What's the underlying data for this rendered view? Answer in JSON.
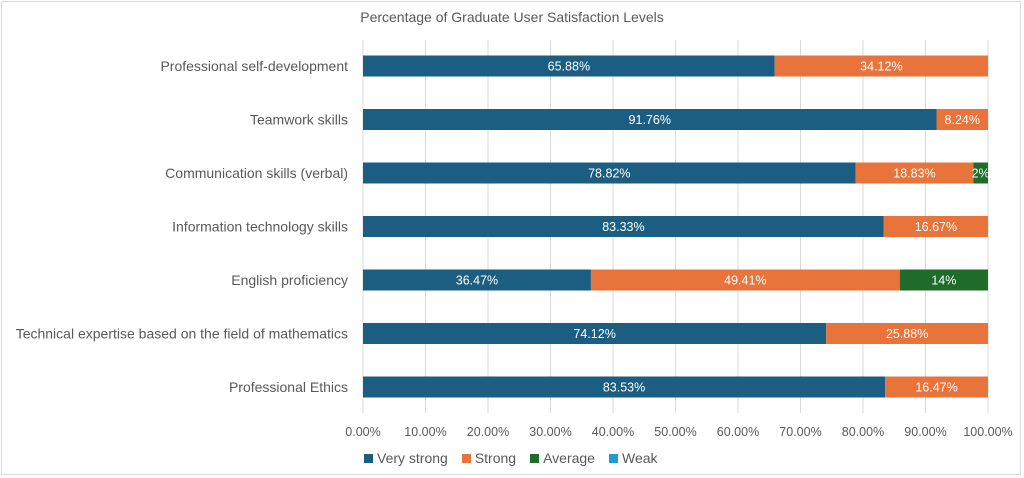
{
  "chart_data": {
    "type": "bar",
    "orientation": "horizontal",
    "stacked": true,
    "title": "Percentage of Graduate User Satisfaction Levels",
    "xlabel": "",
    "ylabel": "",
    "xlim": [
      0,
      100
    ],
    "x_ticks": [
      "0.00%",
      "10.00%",
      "20.00%",
      "30.00%",
      "40.00%",
      "50.00%",
      "60.00%",
      "70.00%",
      "80.00%",
      "90.00%",
      "100.00%"
    ],
    "grid": true,
    "legend_position": "bottom",
    "categories": [
      "Professional self-development",
      "Teamwork skills",
      "Communication skills (verbal)",
      "Information technology skills",
      "English proficiency",
      "Technical expertise based on the field of mathematics",
      "Professional Ethics"
    ],
    "series": [
      {
        "name": "Very strong",
        "color": "#1b5e82",
        "values": [
          65.88,
          91.76,
          78.82,
          83.33,
          36.47,
          74.12,
          83.53
        ],
        "labels": [
          "65.88%",
          "91.76%",
          "78.82%",
          "83.33%",
          "36.47%",
          "74.12%",
          "83.53%"
        ]
      },
      {
        "name": "Strong",
        "color": "#e8743b",
        "values": [
          34.12,
          8.24,
          18.83,
          16.67,
          49.41,
          25.88,
          16.47
        ],
        "labels": [
          "34.12%",
          "8.24%",
          "18.83%",
          "16.67%",
          "49.41%",
          "25.88%",
          "16.47%"
        ]
      },
      {
        "name": "Average",
        "color": "#1e6b2a",
        "values": [
          0,
          0,
          2.35,
          0,
          14.12,
          0,
          0
        ],
        "labels": [
          "",
          "",
          "2%",
          "",
          "14%",
          "",
          ""
        ]
      },
      {
        "name": "Weak",
        "color": "#1f9bd7",
        "values": [
          0,
          0,
          0,
          0,
          0,
          0,
          0
        ],
        "labels": [
          "",
          "",
          "",
          "",
          "",
          "",
          ""
        ]
      }
    ]
  }
}
